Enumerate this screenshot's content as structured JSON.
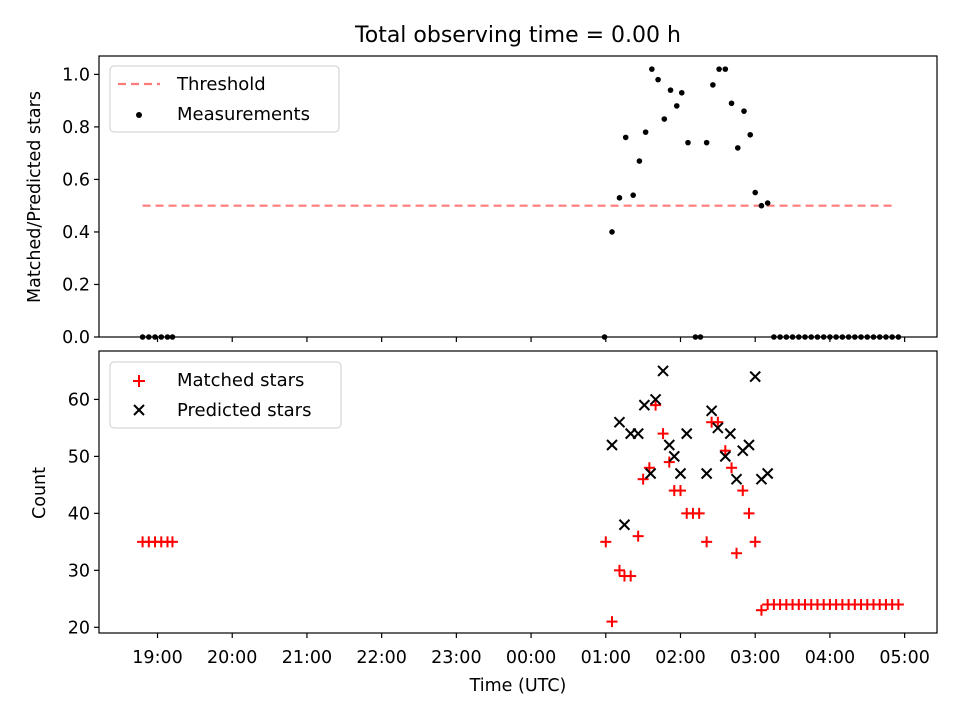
{
  "colors": {
    "threshold": "#ff7b7b",
    "measurements": "#000000",
    "matched": "#ff0000",
    "predicted": "#000000"
  },
  "chart_data": [
    {
      "type": "scatter",
      "title": "Total observing time = 0.00 h",
      "ylabel": "Matched/Predicted stars",
      "ylim": [
        0,
        1.07
      ],
      "xlim": [
        "18:13",
        "05:26"
      ],
      "yticks": [
        "0.0",
        "0.2",
        "0.4",
        "0.6",
        "0.8",
        "1.0"
      ],
      "grid": false,
      "legend": "top-left",
      "legend_entries": [
        "Threshold",
        "Measurements"
      ],
      "threshold": {
        "value": 0.5,
        "x_start": "18:48",
        "x_end": "04:52"
      },
      "series": [
        {
          "name": "Measurements",
          "points": [
            [
              "18:48",
              0.0
            ],
            [
              "18:53",
              0.0
            ],
            [
              "18:58",
              0.0
            ],
            [
              "19:03",
              0.0
            ],
            [
              "19:08",
              0.0
            ],
            [
              "19:12",
              0.0
            ],
            [
              "00:59",
              0.0
            ],
            [
              "01:05",
              0.4
            ],
            [
              "01:11",
              0.53
            ],
            [
              "01:16",
              0.76
            ],
            [
              "01:22",
              0.54
            ],
            [
              "01:27",
              0.67
            ],
            [
              "01:32",
              0.78
            ],
            [
              "01:37",
              1.02
            ],
            [
              "01:42",
              0.98
            ],
            [
              "01:47",
              0.83
            ],
            [
              "01:52",
              0.94
            ],
            [
              "01:57",
              0.88
            ],
            [
              "02:01",
              0.93
            ],
            [
              "02:06",
              0.74
            ],
            [
              "02:12",
              0.0
            ],
            [
              "02:16",
              0.0
            ],
            [
              "02:21",
              0.74
            ],
            [
              "02:26",
              0.96
            ],
            [
              "02:31",
              1.02
            ],
            [
              "02:36",
              1.02
            ],
            [
              "02:41",
              0.89
            ],
            [
              "02:46",
              0.72
            ],
            [
              "02:51",
              0.86
            ],
            [
              "02:56",
              0.77
            ],
            [
              "03:00",
              0.55
            ],
            [
              "03:05",
              0.5
            ],
            [
              "03:10",
              0.51
            ],
            [
              "03:15",
              0.0
            ],
            [
              "03:20",
              0.0
            ],
            [
              "03:25",
              0.0
            ],
            [
              "03:30",
              0.0
            ],
            [
              "03:35",
              0.0
            ],
            [
              "03:40",
              0.0
            ],
            [
              "03:45",
              0.0
            ],
            [
              "03:50",
              0.0
            ],
            [
              "03:55",
              0.0
            ],
            [
              "04:00",
              0.0
            ],
            [
              "04:05",
              0.0
            ],
            [
              "04:10",
              0.0
            ],
            [
              "04:15",
              0.0
            ],
            [
              "04:20",
              0.0
            ],
            [
              "04:25",
              0.0
            ],
            [
              "04:30",
              0.0
            ],
            [
              "04:35",
              0.0
            ],
            [
              "04:40",
              0.0
            ],
            [
              "04:45",
              0.0
            ],
            [
              "04:50",
              0.0
            ],
            [
              "04:55",
              0.0
            ]
          ]
        }
      ]
    },
    {
      "type": "scatter",
      "xlabel": "Time (UTC)",
      "ylabel": "Count",
      "ylim": [
        19,
        68.5
      ],
      "xlim": [
        "18:13",
        "05:26"
      ],
      "xticks": [
        "19:00",
        "20:00",
        "21:00",
        "22:00",
        "23:00",
        "00:00",
        "01:00",
        "02:00",
        "03:00",
        "04:00",
        "05:00"
      ],
      "yticks": [
        "20",
        "30",
        "40",
        "50",
        "60"
      ],
      "grid": false,
      "legend": "top-left",
      "legend_entries": [
        "Matched stars",
        "Predicted stars"
      ],
      "series": [
        {
          "name": "Matched stars",
          "points": [
            [
              "18:48",
              35
            ],
            [
              "18:53",
              35
            ],
            [
              "18:58",
              35
            ],
            [
              "19:03",
              35
            ],
            [
              "19:08",
              35
            ],
            [
              "19:12",
              35
            ],
            [
              "01:00",
              35
            ],
            [
              "01:05",
              21
            ],
            [
              "01:11",
              30
            ],
            [
              "01:15",
              29
            ],
            [
              "01:20",
              29
            ],
            [
              "01:26",
              36
            ],
            [
              "01:30",
              46
            ],
            [
              "01:35",
              48
            ],
            [
              "01:40",
              59
            ],
            [
              "01:46",
              54
            ],
            [
              "01:51",
              49
            ],
            [
              "01:55",
              44
            ],
            [
              "02:00",
              44
            ],
            [
              "02:05",
              40
            ],
            [
              "02:10",
              40
            ],
            [
              "02:15",
              40
            ],
            [
              "02:21",
              35
            ],
            [
              "02:25",
              56
            ],
            [
              "02:30",
              56
            ],
            [
              "02:36",
              51
            ],
            [
              "02:41",
              48
            ],
            [
              "02:45",
              33
            ],
            [
              "02:50",
              44
            ],
            [
              "02:55",
              40
            ],
            [
              "03:00",
              35
            ],
            [
              "03:05",
              23
            ],
            [
              "03:10",
              24
            ],
            [
              "03:15",
              24
            ],
            [
              "03:20",
              24
            ],
            [
              "03:25",
              24
            ],
            [
              "03:30",
              24
            ],
            [
              "03:35",
              24
            ],
            [
              "03:40",
              24
            ],
            [
              "03:45",
              24
            ],
            [
              "03:50",
              24
            ],
            [
              "03:55",
              24
            ],
            [
              "04:00",
              24
            ],
            [
              "04:05",
              24
            ],
            [
              "04:10",
              24
            ],
            [
              "04:15",
              24
            ],
            [
              "04:20",
              24
            ],
            [
              "04:25",
              24
            ],
            [
              "04:30",
              24
            ],
            [
              "04:35",
              24
            ],
            [
              "04:40",
              24
            ],
            [
              "04:45",
              24
            ],
            [
              "04:50",
              24
            ],
            [
              "04:55",
              24
            ]
          ]
        },
        {
          "name": "Predicted stars",
          "points": [
            [
              "01:05",
              52
            ],
            [
              "01:11",
              56
            ],
            [
              "01:15",
              38
            ],
            [
              "01:20",
              54
            ],
            [
              "01:26",
              54
            ],
            [
              "01:31",
              59
            ],
            [
              "01:36",
              47
            ],
            [
              "01:40",
              60
            ],
            [
              "01:46",
              65
            ],
            [
              "01:51",
              52
            ],
            [
              "01:55",
              50
            ],
            [
              "02:00",
              47
            ],
            [
              "02:05",
              54
            ],
            [
              "02:21",
              47
            ],
            [
              "02:25",
              58
            ],
            [
              "02:30",
              55
            ],
            [
              "02:36",
              50
            ],
            [
              "02:40",
              54
            ],
            [
              "02:45",
              46
            ],
            [
              "02:50",
              51
            ],
            [
              "02:55",
              52
            ],
            [
              "03:00",
              64
            ],
            [
              "03:05",
              46
            ],
            [
              "03:10",
              47
            ]
          ]
        }
      ]
    }
  ]
}
